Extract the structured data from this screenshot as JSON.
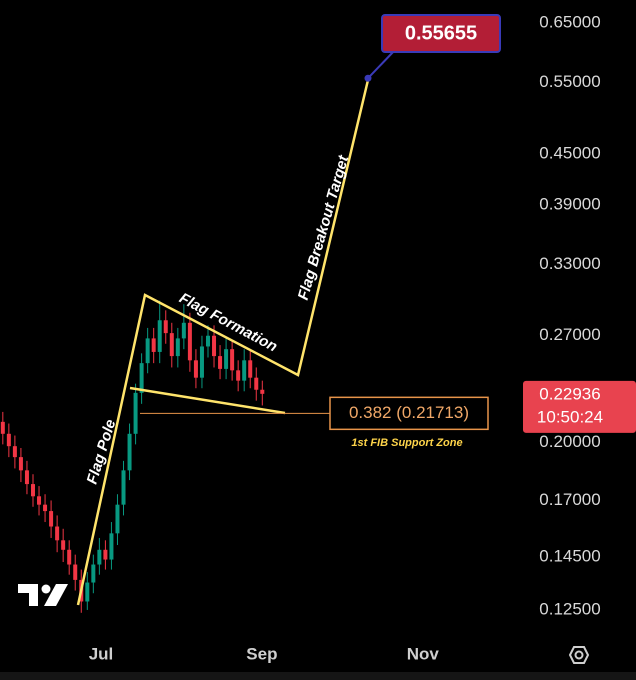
{
  "chart_data": {
    "type": "candlestick",
    "log_scale": true,
    "x": [
      5.78,
      5.855,
      5.93,
      6.005,
      6.08,
      6.155,
      6.23,
      6.305,
      6.38,
      6.455,
      6.53,
      6.605,
      6.68,
      6.755,
      6.83,
      6.905,
      6.98,
      7.055,
      7.13,
      7.205,
      7.28,
      7.355,
      7.43,
      7.505,
      7.58,
      7.655,
      7.73,
      7.805,
      7.88,
      7.955,
      8.03,
      8.105,
      8.18,
      8.255,
      8.33,
      8.405,
      8.48,
      8.555,
      8.63,
      8.705,
      8.78,
      8.855,
      8.93,
      9.005
    ],
    "open": [
      0.212,
      0.205,
      0.198,
      0.192,
      0.185,
      0.178,
      0.172,
      0.168,
      0.165,
      0.158,
      0.152,
      0.148,
      0.142,
      0.136,
      0.128,
      0.135,
      0.142,
      0.148,
      0.144,
      0.155,
      0.168,
      0.185,
      0.205,
      0.23,
      0.25,
      0.268,
      0.258,
      0.282,
      0.272,
      0.255,
      0.268,
      0.28,
      0.252,
      0.24,
      0.262,
      0.27,
      0.255,
      0.246,
      0.26,
      0.245,
      0.238,
      0.252,
      0.24,
      0.232
    ],
    "high": [
      0.218,
      0.211,
      0.204,
      0.197,
      0.19,
      0.183,
      0.177,
      0.173,
      0.17,
      0.163,
      0.157,
      0.152,
      0.146,
      0.14,
      0.139,
      0.146,
      0.153,
      0.152,
      0.16,
      0.173,
      0.19,
      0.211,
      0.236,
      0.257,
      0.276,
      0.276,
      0.298,
      0.29,
      0.28,
      0.276,
      0.295,
      0.288,
      0.26,
      0.27,
      0.278,
      0.278,
      0.263,
      0.268,
      0.267,
      0.252,
      0.26,
      0.259,
      0.247,
      0.238
    ],
    "low": [
      0.199,
      0.192,
      0.186,
      0.179,
      0.173,
      0.167,
      0.163,
      0.16,
      0.153,
      0.147,
      0.143,
      0.138,
      0.132,
      0.124,
      0.125,
      0.131,
      0.138,
      0.14,
      0.14,
      0.15,
      0.163,
      0.18,
      0.199,
      0.223,
      0.243,
      0.25,
      0.25,
      0.264,
      0.247,
      0.247,
      0.26,
      0.244,
      0.233,
      0.233,
      0.254,
      0.247,
      0.239,
      0.239,
      0.238,
      0.231,
      0.231,
      0.233,
      0.225,
      0.222
    ],
    "close": [
      0.205,
      0.198,
      0.192,
      0.185,
      0.178,
      0.172,
      0.168,
      0.165,
      0.158,
      0.152,
      0.148,
      0.142,
      0.136,
      0.128,
      0.135,
      0.142,
      0.148,
      0.144,
      0.155,
      0.168,
      0.185,
      0.205,
      0.23,
      0.25,
      0.268,
      0.258,
      0.282,
      0.272,
      0.255,
      0.268,
      0.28,
      0.252,
      0.24,
      0.262,
      0.27,
      0.255,
      0.246,
      0.26,
      0.245,
      0.238,
      0.252,
      0.24,
      0.232,
      0.22936
    ],
    "colors": {
      "up": "#089981",
      "down": "#f23645"
    },
    "xlim": [
      5.745,
      12.27
    ],
    "ylim": [
      0.1165,
      0.6933
    ],
    "xticks": [
      {
        "value": 7,
        "label": "Jul"
      },
      {
        "value": 9,
        "label": "Sep"
      },
      {
        "value": 11,
        "label": "Nov"
      }
    ],
    "yticks": [
      {
        "value": 0.65,
        "label": "0.65000"
      },
      {
        "value": 0.55,
        "label": "0.55000"
      },
      {
        "value": 0.45,
        "label": "0.45000"
      },
      {
        "value": 0.39,
        "label": "0.39000"
      },
      {
        "value": 0.33,
        "label": "0.33000"
      },
      {
        "value": 0.27,
        "label": "0.27000"
      },
      {
        "value": 0.2,
        "label": "0.20000"
      },
      {
        "value": 0.17,
        "label": "0.17000"
      },
      {
        "value": 0.145,
        "label": "0.14500"
      },
      {
        "value": 0.125,
        "label": "0.12500"
      }
    ],
    "annotations": [
      "Flag Pole",
      "Flag Formation",
      "Flag Breakout Target"
    ],
    "target": 0.55655,
    "fib": {
      "value": 0.21713,
      "label": "0.382 (0.21713)",
      "note": "1st FIB Support Zone"
    },
    "last_price": 0.22936,
    "countdown": "10:50:24"
  }
}
